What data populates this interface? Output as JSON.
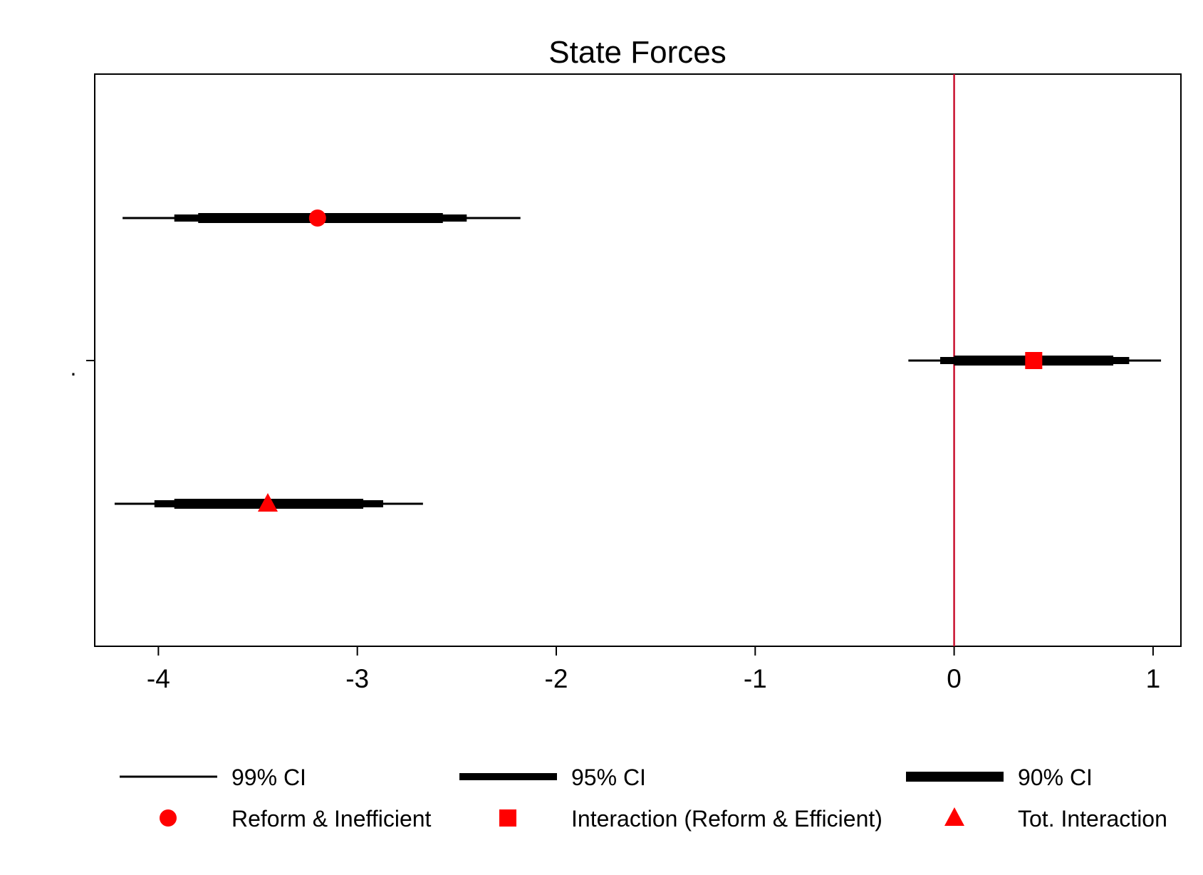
{
  "chart_data": {
    "type": "coefficient-plot",
    "title": "State Forces",
    "xlabel": "",
    "ylabel": "",
    "y_tick_labels": [
      "."
    ],
    "xlim": [
      -4.32,
      1.14
    ],
    "x_ticks": [
      -4,
      -3,
      -2,
      -1,
      0,
      1
    ],
    "x_tick_labels": [
      "-4",
      "-3",
      "-2",
      "-1",
      "0",
      "1"
    ],
    "reference_line": {
      "x": 0,
      "color": "#c8102e"
    },
    "marker_color": "#ff0000",
    "series": [
      {
        "name": "Reform & Inefficient",
        "marker": "circle",
        "estimate": -3.2,
        "ci99": [
          -4.18,
          -2.18
        ],
        "ci95": [
          -3.92,
          -2.45
        ],
        "ci90": [
          -3.8,
          -2.57
        ]
      },
      {
        "name": "Interaction (Reform & Efficient)",
        "marker": "square",
        "estimate": 0.4,
        "ci99": [
          -0.23,
          1.04
        ],
        "ci95": [
          -0.07,
          0.88
        ],
        "ci90": [
          0.0,
          0.8
        ]
      },
      {
        "name": "Tot. Interaction",
        "marker": "triangle",
        "estimate": -3.45,
        "ci99": [
          -4.22,
          -2.67
        ],
        "ci95": [
          -4.02,
          -2.87
        ],
        "ci90": [
          -3.92,
          -2.97
        ]
      }
    ],
    "legend": {
      "placement": "bottom",
      "entries": [
        {
          "key": "ci99",
          "label": "99% CI"
        },
        {
          "key": "ci95",
          "label": "95% CI"
        },
        {
          "key": "ci90",
          "label": "90% CI"
        },
        {
          "key": "circle",
          "label": "Reform & Inefficient"
        },
        {
          "key": "square",
          "label": "Interaction (Reform & Efficient)"
        },
        {
          "key": "triangle",
          "label": "Tot. Interaction"
        }
      ]
    }
  }
}
